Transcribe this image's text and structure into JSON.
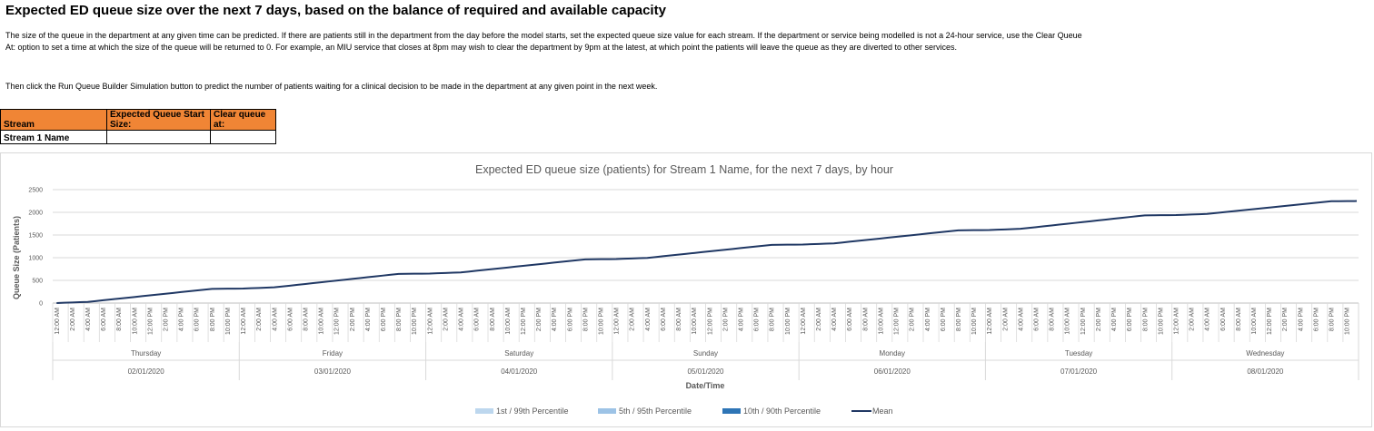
{
  "page": {
    "title": "Expected ED queue size over the next 7 days, based on the balance of required and available capacity",
    "paragraph1": "The size of the queue in the department at any given time can be predicted. If there are patients still in the department from the day before the model starts, set the expected queue size value for each stream. If the department or service being modelled is not a 24-hour service, use the Clear Queue At: option to set a time at which the size of the queue will be returned to 0. For example, an MIU service that closes at 8pm may wish to clear the department by 9pm at the latest, at which point the patients will leave the queue as they are diverted to other services.",
    "paragraph2": "Then click the Run Queue Builder Simulation button to predict the number of patients waiting for a clinical decision to be made in the department at any given point in the next week."
  },
  "input_table": {
    "headers": [
      "Stream",
      "Expected Queue Start Size:",
      "Clear queue at:"
    ],
    "rows": [
      {
        "stream": "Stream 1 Name",
        "start_size": "",
        "clear_at": ""
      }
    ],
    "header_color": "#f08535"
  },
  "chart_data": {
    "type": "line",
    "title": "Expected ED queue size (patients) for Stream 1 Name, for the next 7 days, by hour",
    "xlabel": "Date/Time",
    "ylabel": "Queue Size (Patients)",
    "ylim": [
      0,
      2500
    ],
    "yticks": [
      0,
      500,
      1000,
      1500,
      2000,
      2500
    ],
    "grid": true,
    "legend_position": "bottom",
    "hour_labels": [
      "12:00 AM",
      "2:00 AM",
      "4:00 AM",
      "6:00 AM",
      "8:00 AM",
      "10:00 AM",
      "12:00 PM",
      "2:00 PM",
      "4:00 PM",
      "6:00 PM",
      "8:00 PM",
      "10:00 PM"
    ],
    "days": [
      {
        "day": "Thursday",
        "date": "02/01/2020"
      },
      {
        "day": "Friday",
        "date": "03/01/2020"
      },
      {
        "day": "Saturday",
        "date": "04/01/2020"
      },
      {
        "day": "Sunday",
        "date": "05/01/2020"
      },
      {
        "day": "Monday",
        "date": "06/01/2020"
      },
      {
        "day": "Tuesday",
        "date": "07/01/2020"
      },
      {
        "day": "Wednesday",
        "date": "08/01/2020"
      }
    ],
    "legend": [
      {
        "name": "1st / 99th Percentile",
        "color": "#bdd7ee",
        "kind": "box"
      },
      {
        "name": "5th / 95th Percentile",
        "color": "#9dc3e6",
        "kind": "box"
      },
      {
        "name": "10th / 90th Percentile",
        "color": "#2e75b6",
        "kind": "box"
      },
      {
        "name": "Mean",
        "color": "#203864",
        "kind": "line"
      }
    ],
    "series": [
      {
        "name": "Mean",
        "color": "#203864",
        "day_start_values": [
          0,
          320,
          650,
          970,
          1290,
          1610,
          1940
        ],
        "day_end_value": 2250
      }
    ]
  }
}
